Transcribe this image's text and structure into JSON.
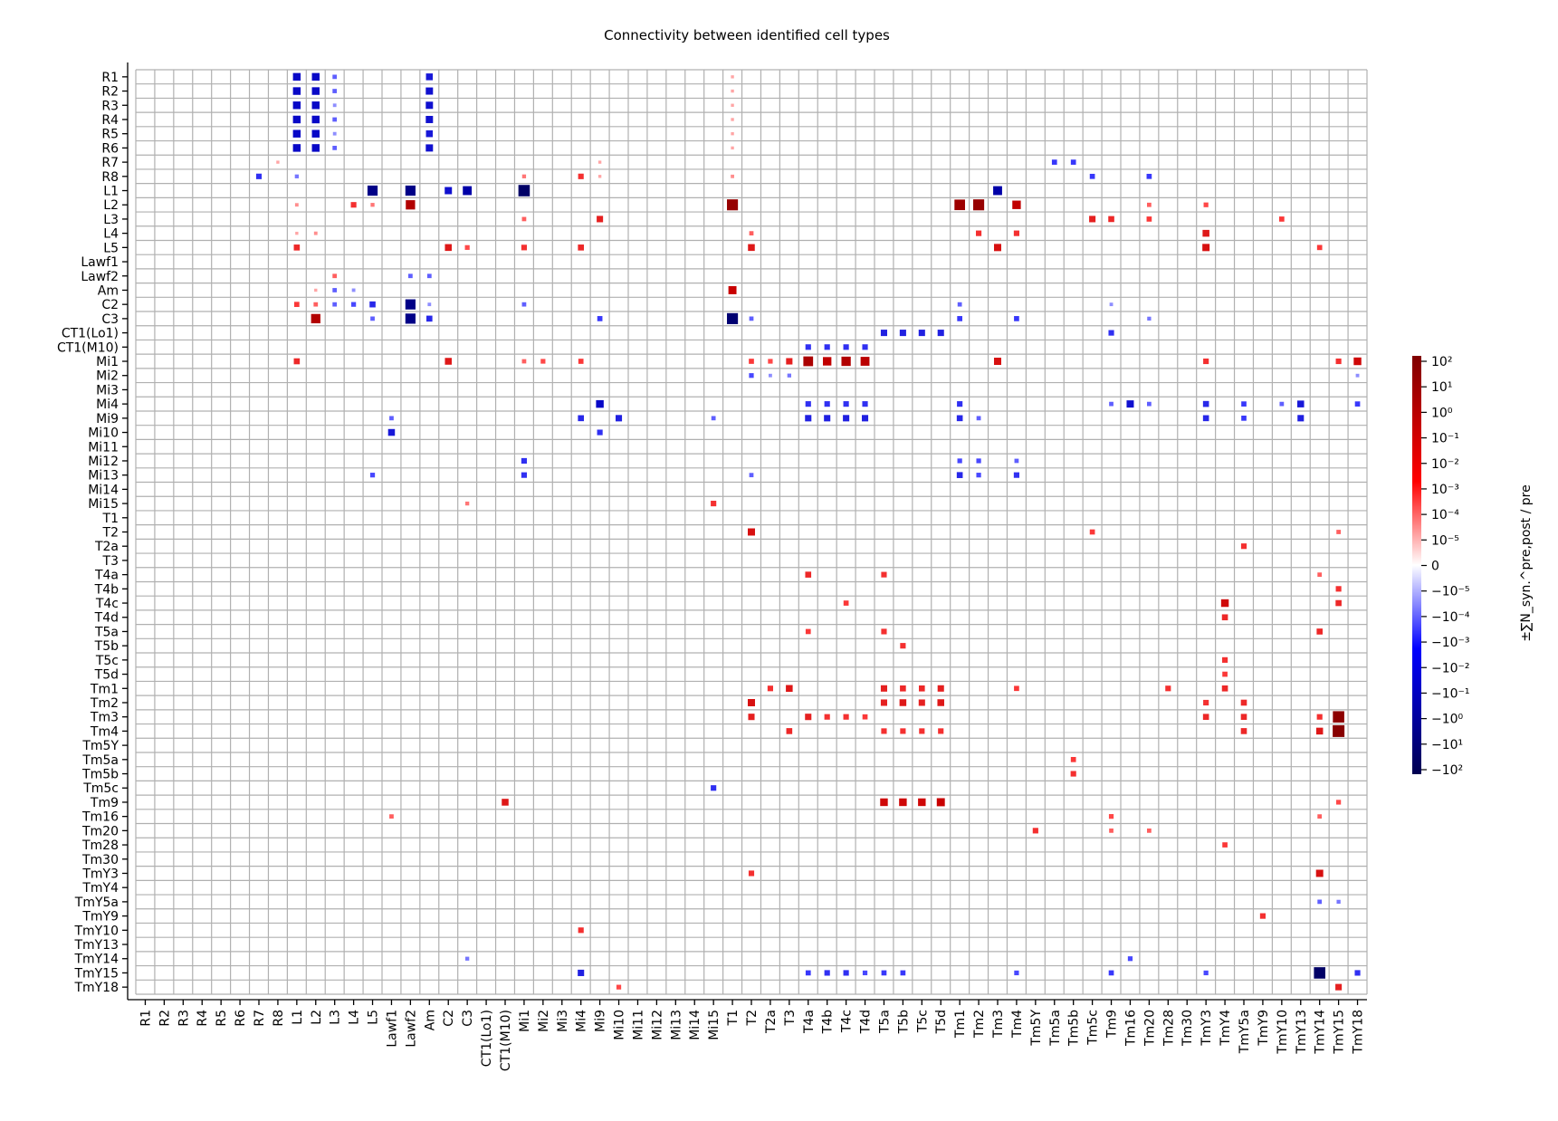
{
  "chart_data": {
    "type": "heatmap",
    "title": "Connectivity between identified cell types",
    "xlabel": "",
    "ylabel": "",
    "grid": true,
    "presynaptic_rows": [
      "R1",
      "R2",
      "R3",
      "R4",
      "R5",
      "R6",
      "R7",
      "R8",
      "L1",
      "L2",
      "L3",
      "L4",
      "L5",
      "Lawf1",
      "Lawf2",
      "Am",
      "C2",
      "C3",
      "CT1(Lo1)",
      "CT1(M10)",
      "Mi1",
      "Mi2",
      "Mi3",
      "Mi4",
      "Mi9",
      "Mi10",
      "Mi11",
      "Mi12",
      "Mi13",
      "Mi14",
      "Mi15",
      "T1",
      "T2",
      "T2a",
      "T3",
      "T4a",
      "T4b",
      "T4c",
      "T4d",
      "T5a",
      "T5b",
      "T5c",
      "T5d",
      "Tm1",
      "Tm2",
      "Tm3",
      "Tm4",
      "Tm5Y",
      "Tm5a",
      "Tm5b",
      "Tm5c",
      "Tm9",
      "Tm16",
      "Tm20",
      "Tm28",
      "Tm30",
      "TmY3",
      "TmY4",
      "TmY5a",
      "TmY9",
      "TmY10",
      "TmY13",
      "TmY14",
      "TmY15",
      "TmY18"
    ],
    "postsynaptic_columns": [
      "R1",
      "R2",
      "R3",
      "R4",
      "R5",
      "R6",
      "R7",
      "R8",
      "L1",
      "L2",
      "L3",
      "L4",
      "L5",
      "Lawf1",
      "Lawf2",
      "Am",
      "C2",
      "C3",
      "CT1(Lo1)",
      "CT1(M10)",
      "Mi1",
      "Mi2",
      "Mi3",
      "Mi4",
      "Mi9",
      "Mi10",
      "Mi11",
      "Mi12",
      "Mi13",
      "Mi14",
      "Mi15",
      "T1",
      "T2",
      "T2a",
      "T3",
      "T4a",
      "T4b",
      "T4c",
      "T4d",
      "T5a",
      "T5b",
      "T5c",
      "T5d",
      "Tm1",
      "Tm2",
      "Tm3",
      "Tm4",
      "Tm5Y",
      "Tm5a",
      "Tm5b",
      "Tm5c",
      "Tm9",
      "Tm16",
      "Tm20",
      "Tm28",
      "Tm30",
      "TmY3",
      "TmY4",
      "TmY5a",
      "TmY9",
      "TmY10",
      "TmY13",
      "TmY14",
      "TmY15",
      "TmY18"
    ],
    "entries_note_format": [
      "row",
      "column",
      "signed log10 magnitude"
    ],
    "entries": [
      [
        "R1",
        "L1",
        -1.4
      ],
      [
        "R1",
        "L2",
        -1.4
      ],
      [
        "R1",
        "L3",
        -0.6
      ],
      [
        "R1",
        "Am",
        -1.2
      ],
      [
        "R1",
        "T1",
        0.3
      ],
      [
        "R2",
        "L1",
        -1.4
      ],
      [
        "R2",
        "L2",
        -1.4
      ],
      [
        "R2",
        "L3",
        -0.6
      ],
      [
        "R2",
        "Am",
        -1.3
      ],
      [
        "R2",
        "T1",
        0.3
      ],
      [
        "R3",
        "L1",
        -1.4
      ],
      [
        "R3",
        "L2",
        -1.4
      ],
      [
        "R3",
        "L3",
        -0.4
      ],
      [
        "R3",
        "Am",
        -1.3
      ],
      [
        "R3",
        "T1",
        0.3
      ],
      [
        "R4",
        "L1",
        -1.4
      ],
      [
        "R4",
        "L2",
        -1.4
      ],
      [
        "R4",
        "L3",
        -0.6
      ],
      [
        "R4",
        "Am",
        -1.3
      ],
      [
        "R4",
        "T1",
        0.3
      ],
      [
        "R5",
        "L1",
        -1.4
      ],
      [
        "R5",
        "L2",
        -1.4
      ],
      [
        "R5",
        "L3",
        -0.4
      ],
      [
        "R5",
        "Am",
        -1.2
      ],
      [
        "R5",
        "T1",
        0.3
      ],
      [
        "R6",
        "L1",
        -1.4
      ],
      [
        "R6",
        "L2",
        -1.4
      ],
      [
        "R6",
        "L3",
        -0.6
      ],
      [
        "R6",
        "Am",
        -1.3
      ],
      [
        "R6",
        "T1",
        0.3
      ],
      [
        "R7",
        "R8",
        0.3
      ],
      [
        "R7",
        "Mi9",
        0.3
      ],
      [
        "R7",
        "Tm5a",
        -0.8
      ],
      [
        "R7",
        "Tm5b",
        -0.8
      ],
      [
        "R8",
        "R7",
        -0.9
      ],
      [
        "R8",
        "L1",
        -0.5
      ],
      [
        "R8",
        "Mi1",
        0.5
      ],
      [
        "R8",
        "Mi4",
        0.9
      ],
      [
        "R8",
        "Mi9",
        0.3
      ],
      [
        "R8",
        "T1",
        0.4
      ],
      [
        "R8",
        "Tm5c",
        -0.8
      ],
      [
        "R8",
        "Tm20",
        -0.8
      ],
      [
        "L1",
        "L5",
        -2.0
      ],
      [
        "L1",
        "Lawf2",
        -2.0
      ],
      [
        "L1",
        "C2",
        -1.3
      ],
      [
        "L1",
        "C3",
        -1.7
      ],
      [
        "L1",
        "Mi1",
        -2.3
      ],
      [
        "L1",
        "Tm3",
        -1.7
      ],
      [
        "L2",
        "L1",
        0.4
      ],
      [
        "L2",
        "Lawf2",
        1.8
      ],
      [
        "L2",
        "L5",
        0.5
      ],
      [
        "L2",
        "L4",
        0.9
      ],
      [
        "L2",
        "T1",
        2.2
      ],
      [
        "L2",
        "Tm1",
        2.1
      ],
      [
        "L2",
        "Tm2",
        2.2
      ],
      [
        "L2",
        "Tm4",
        1.6
      ],
      [
        "L2",
        "Tm20",
        0.6
      ],
      [
        "L2",
        "TmY3",
        0.7
      ],
      [
        "L3",
        "Mi9",
        1.1
      ],
      [
        "L3",
        "Tm5c",
        1.1
      ],
      [
        "L3",
        "Tm9",
        1.0
      ],
      [
        "L3",
        "Tm20",
        0.8
      ],
      [
        "L3",
        "TmY10",
        0.8
      ],
      [
        "L3",
        "Mi1",
        0.6
      ],
      [
        "L4",
        "L2",
        0.4
      ],
      [
        "L4",
        "L1",
        0.3
      ],
      [
        "L4",
        "Tm2",
        0.9
      ],
      [
        "L4",
        "Tm4",
        0.9
      ],
      [
        "L4",
        "TmY3",
        1.2
      ],
      [
        "L4",
        "T2",
        0.6
      ],
      [
        "L5",
        "L1",
        1.0
      ],
      [
        "L5",
        "C2",
        1.2
      ],
      [
        "L5",
        "C3",
        0.7
      ],
      [
        "L5",
        "Mi1",
        0.9
      ],
      [
        "L5",
        "Mi4",
        1.0
      ],
      [
        "L5",
        "T2",
        1.2
      ],
      [
        "L5",
        "Tm3",
        1.3
      ],
      [
        "L5",
        "TmY3",
        1.3
      ],
      [
        "L5",
        "TmY14",
        0.8
      ],
      [
        "Lawf2",
        "L3",
        0.6
      ],
      [
        "Lawf2",
        "Lawf2",
        -0.6
      ],
      [
        "Lawf2",
        "Am",
        -0.6
      ],
      [
        "Am",
        "L3",
        -0.6
      ],
      [
        "Am",
        "L4",
        -0.4
      ],
      [
        "Am",
        "T1",
        1.5
      ],
      [
        "Am",
        "L2",
        0.3
      ],
      [
        "C2",
        "L1",
        0.8
      ],
      [
        "C2",
        "L2",
        0.6
      ],
      [
        "C2",
        "L3",
        -0.6
      ],
      [
        "C2",
        "L4",
        -0.7
      ],
      [
        "C2",
        "L5",
        -1.0
      ],
      [
        "C2",
        "Lawf2",
        -2.0
      ],
      [
        "C2",
        "Am",
        -0.4
      ],
      [
        "C2",
        "Mi1",
        -0.6
      ],
      [
        "C2",
        "Tm1",
        -0.6
      ],
      [
        "C2",
        "Tm9",
        -0.4
      ],
      [
        "C3",
        "L2",
        1.8
      ],
      [
        "C3",
        "L5",
        -0.6
      ],
      [
        "C3",
        "Lawf2",
        -2.0
      ],
      [
        "C3",
        "Am",
        -1.0
      ],
      [
        "C3",
        "T1",
        -2.2
      ],
      [
        "C3",
        "T2",
        -0.6
      ],
      [
        "C3",
        "Mi9",
        -0.8
      ],
      [
        "C3",
        "Tm1",
        -0.8
      ],
      [
        "C3",
        "Tm4",
        -0.8
      ],
      [
        "C3",
        "Tm20",
        -0.5
      ],
      [
        "CT1(Lo1)",
        "T5a",
        -1.1
      ],
      [
        "CT1(Lo1)",
        "T5b",
        -1.1
      ],
      [
        "CT1(Lo1)",
        "T5c",
        -1.1
      ],
      [
        "CT1(Lo1)",
        "T5d",
        -1.1
      ],
      [
        "CT1(Lo1)",
        "Tm9",
        -0.9
      ],
      [
        "CT1(M10)",
        "T4a",
        -0.9
      ],
      [
        "CT1(M10)",
        "T4b",
        -0.9
      ],
      [
        "CT1(M10)",
        "T4c",
        -0.9
      ],
      [
        "CT1(M10)",
        "T4d",
        -0.9
      ],
      [
        "Mi1",
        "L1",
        1.0
      ],
      [
        "Mi1",
        "C2",
        1.2
      ],
      [
        "Mi1",
        "Mi1",
        0.6
      ],
      [
        "Mi1",
        "Mi2",
        0.7
      ],
      [
        "Mi1",
        "Mi4",
        0.8
      ],
      [
        "Mi1",
        "T2",
        0.8
      ],
      [
        "Mi1",
        "T2a",
        0.7
      ],
      [
        "Mi1",
        "T3",
        1.1
      ],
      [
        "Mi1",
        "T4a",
        1.9
      ],
      [
        "Mi1",
        "T4b",
        1.6
      ],
      [
        "Mi1",
        "T4c",
        1.8
      ],
      [
        "Mi1",
        "T4d",
        1.7
      ],
      [
        "Mi1",
        "Tm3",
        1.3
      ],
      [
        "Mi1",
        "TmY3",
        0.9
      ],
      [
        "Mi1",
        "TmY15",
        0.9
      ],
      [
        "Mi1",
        "TmY18",
        1.4
      ],
      [
        "Mi2",
        "T2",
        -0.7
      ],
      [
        "Mi2",
        "T2a",
        -0.4
      ],
      [
        "Mi2",
        "T3",
        -0.5
      ],
      [
        "Mi2",
        "TmY18",
        -0.4
      ],
      [
        "Mi4",
        "Mi9",
        -1.4
      ],
      [
        "Mi4",
        "T4a",
        -0.9
      ],
      [
        "Mi4",
        "T4b",
        -0.9
      ],
      [
        "Mi4",
        "T4c",
        -0.9
      ],
      [
        "Mi4",
        "T4d",
        -0.9
      ],
      [
        "Mi4",
        "Tm1",
        -0.9
      ],
      [
        "Mi4",
        "Tm20",
        -0.6
      ],
      [
        "Mi4",
        "Tm16",
        -1.3
      ],
      [
        "Mi4",
        "TmY3",
        -1.0
      ],
      [
        "Mi4",
        "TmY5a",
        -0.8
      ],
      [
        "Mi4",
        "TmY13",
        -1.2
      ],
      [
        "Mi4",
        "TmY18",
        -0.8
      ],
      [
        "Mi4",
        "Tm9",
        -0.6
      ],
      [
        "Mi4",
        "TmY10",
        -0.6
      ],
      [
        "Mi9",
        "Lawf1",
        -0.6
      ],
      [
        "Mi9",
        "Mi4",
        -1.0
      ],
      [
        "Mi9",
        "Mi10",
        -1.1
      ],
      [
        "Mi9",
        "T4a",
        -1.1
      ],
      [
        "Mi9",
        "T4b",
        -1.1
      ],
      [
        "Mi9",
        "T4c",
        -1.1
      ],
      [
        "Mi9",
        "T4d",
        -1.1
      ],
      [
        "Mi9",
        "Tm1",
        -1.0
      ],
      [
        "Mi9",
        "Tm2",
        -0.6
      ],
      [
        "Mi9",
        "TmY3",
        -1.0
      ],
      [
        "Mi9",
        "TmY5a",
        -0.8
      ],
      [
        "Mi9",
        "TmY13",
        -1.1
      ],
      [
        "Mi9",
        "Mi15",
        -0.6
      ],
      [
        "Mi10",
        "Lawf1",
        -1.2
      ],
      [
        "Mi10",
        "Mi9",
        -0.9
      ],
      [
        "Mi12",
        "Mi1",
        -0.9
      ],
      [
        "Mi12",
        "Tm1",
        -0.7
      ],
      [
        "Mi12",
        "Tm2",
        -0.7
      ],
      [
        "Mi12",
        "Tm4",
        -0.6
      ],
      [
        "Mi13",
        "L5",
        -0.7
      ],
      [
        "Mi13",
        "Mi1",
        -0.9
      ],
      [
        "Mi13",
        "T2",
        -0.6
      ],
      [
        "Mi13",
        "Tm1",
        -1.0
      ],
      [
        "Mi13",
        "Tm2",
        -0.7
      ],
      [
        "Mi13",
        "Tm4",
        -0.9
      ],
      [
        "Mi15",
        "Mi15",
        0.9
      ],
      [
        "Mi15",
        "C3",
        0.5
      ],
      [
        "T2",
        "T2",
        1.3
      ],
      [
        "T2",
        "Tm5c",
        0.8
      ],
      [
        "T2",
        "TmY15",
        0.6
      ],
      [
        "T2a",
        "TmY5a",
        0.9
      ],
      [
        "T4a",
        "T4a",
        1.0
      ],
      [
        "T4a",
        "T5a",
        0.9
      ],
      [
        "T4a",
        "TmY14",
        0.6
      ],
      [
        "T4b",
        "TmY15",
        0.9
      ],
      [
        "T4c",
        "T4c",
        0.8
      ],
      [
        "T4c",
        "TmY4",
        1.4
      ],
      [
        "T4c",
        "TmY15",
        1.0
      ],
      [
        "T4d",
        "TmY4",
        1.0
      ],
      [
        "T5a",
        "T4a",
        0.8
      ],
      [
        "T5a",
        "T5a",
        0.9
      ],
      [
        "T5a",
        "TmY14",
        1.0
      ],
      [
        "T5b",
        "T5b",
        0.9
      ],
      [
        "T5c",
        "TmY4",
        0.9
      ],
      [
        "T5d",
        "TmY4",
        0.8
      ],
      [
        "Tm1",
        "T2a",
        0.9
      ],
      [
        "Tm1",
        "T3",
        1.2
      ],
      [
        "Tm1",
        "T5a",
        1.1
      ],
      [
        "Tm1",
        "T5b",
        1.0
      ],
      [
        "Tm1",
        "T5c",
        1.0
      ],
      [
        "Tm1",
        "T5d",
        1.1
      ],
      [
        "Tm1",
        "Tm4",
        0.8
      ],
      [
        "Tm1",
        "Tm28",
        0.9
      ],
      [
        "Tm1",
        "TmY4",
        1.0
      ],
      [
        "Tm2",
        "T2",
        1.3
      ],
      [
        "Tm2",
        "T5a",
        1.1
      ],
      [
        "Tm2",
        "T5b",
        1.2
      ],
      [
        "Tm2",
        "T5c",
        1.1
      ],
      [
        "Tm2",
        "T5d",
        1.2
      ],
      [
        "Tm2",
        "TmY3",
        0.9
      ],
      [
        "Tm2",
        "TmY5a",
        1.0
      ],
      [
        "Tm3",
        "T2",
        1.1
      ],
      [
        "Tm3",
        "T4a",
        1.1
      ],
      [
        "Tm3",
        "T4b",
        0.9
      ],
      [
        "Tm3",
        "T4c",
        0.9
      ],
      [
        "Tm3",
        "T4d",
        0.8
      ],
      [
        "Tm3",
        "TmY3",
        1.0
      ],
      [
        "Tm3",
        "TmY5a",
        1.0
      ],
      [
        "Tm3",
        "TmY14",
        0.9
      ],
      [
        "Tm3",
        "TmY15",
        2.3
      ],
      [
        "Tm4",
        "T3",
        1.0
      ],
      [
        "Tm4",
        "T5a",
        0.9
      ],
      [
        "Tm4",
        "T5b",
        0.9
      ],
      [
        "Tm4",
        "T5c",
        0.9
      ],
      [
        "Tm4",
        "T5d",
        0.9
      ],
      [
        "Tm4",
        "TmY5a",
        1.0
      ],
      [
        "Tm4",
        "TmY14",
        1.2
      ],
      [
        "Tm4",
        "TmY15",
        2.4
      ],
      [
        "Tm5a",
        "Tm5b",
        0.8
      ],
      [
        "Tm5b",
        "Tm5b",
        0.9
      ],
      [
        "Tm5c",
        "Mi15",
        -0.9
      ],
      [
        "Tm9",
        "CT1(M10)",
        1.2
      ],
      [
        "Tm9",
        "T5a",
        1.4
      ],
      [
        "Tm9",
        "T5b",
        1.4
      ],
      [
        "Tm9",
        "T5c",
        1.4
      ],
      [
        "Tm9",
        "T5d",
        1.5
      ],
      [
        "Tm9",
        "TmY15",
        0.7
      ],
      [
        "Tm16",
        "Lawf1",
        0.6
      ],
      [
        "Tm16",
        "Tm9",
        0.7
      ],
      [
        "Tm16",
        "TmY14",
        0.6
      ],
      [
        "Tm20",
        "Tm5Y",
        0.9
      ],
      [
        "Tm20",
        "Tm9",
        0.6
      ],
      [
        "Tm20",
        "Tm20",
        0.6
      ],
      [
        "Tm28",
        "TmY4",
        0.8
      ],
      [
        "TmY3",
        "T2",
        0.9
      ],
      [
        "TmY3",
        "TmY14",
        1.3
      ],
      [
        "TmY5a",
        "TmY14",
        -0.6
      ],
      [
        "TmY5a",
        "TmY15",
        -0.5
      ],
      [
        "TmY9",
        "TmY9",
        0.9
      ],
      [
        "TmY10",
        "Mi4",
        0.9
      ],
      [
        "TmY14",
        "C3",
        -0.5
      ],
      [
        "TmY14",
        "Tm16",
        -0.7
      ],
      [
        "TmY15",
        "Mi4",
        -1.1
      ],
      [
        "TmY15",
        "T4a",
        -0.8
      ],
      [
        "TmY15",
        "T4b",
        -0.9
      ],
      [
        "TmY15",
        "T4c",
        -0.9
      ],
      [
        "TmY15",
        "T4d",
        -0.7
      ],
      [
        "TmY15",
        "T5a",
        -0.8
      ],
      [
        "TmY15",
        "T5b",
        -0.8
      ],
      [
        "TmY15",
        "Tm4",
        -0.7
      ],
      [
        "TmY15",
        "Tm9",
        -0.8
      ],
      [
        "TmY15",
        "TmY3",
        -0.7
      ],
      [
        "TmY15",
        "TmY14",
        -2.3
      ],
      [
        "TmY15",
        "TmY18",
        -0.9
      ],
      [
        "TmY18",
        "TmY15",
        1.1
      ],
      [
        "TmY18",
        "Mi10",
        0.7
      ]
    ],
    "colorbar": {
      "label": "±∑N_syn.^pre,post / pre",
      "cmap_low_color": "#000050",
      "cmap_mid_color": "#ffffff",
      "cmap_high_color": "#800000",
      "tick_labels": [
        "10²",
        "10¹",
        "10⁰",
        "10⁻¹",
        "10⁻²",
        "10⁻³",
        "10⁻⁴",
        "10⁻⁵",
        "0",
        "−10⁻⁵",
        "−10⁻⁴",
        "−10⁻³",
        "−10⁻²",
        "−10⁻¹",
        "−10⁰",
        "−10¹",
        "−10²"
      ]
    }
  }
}
